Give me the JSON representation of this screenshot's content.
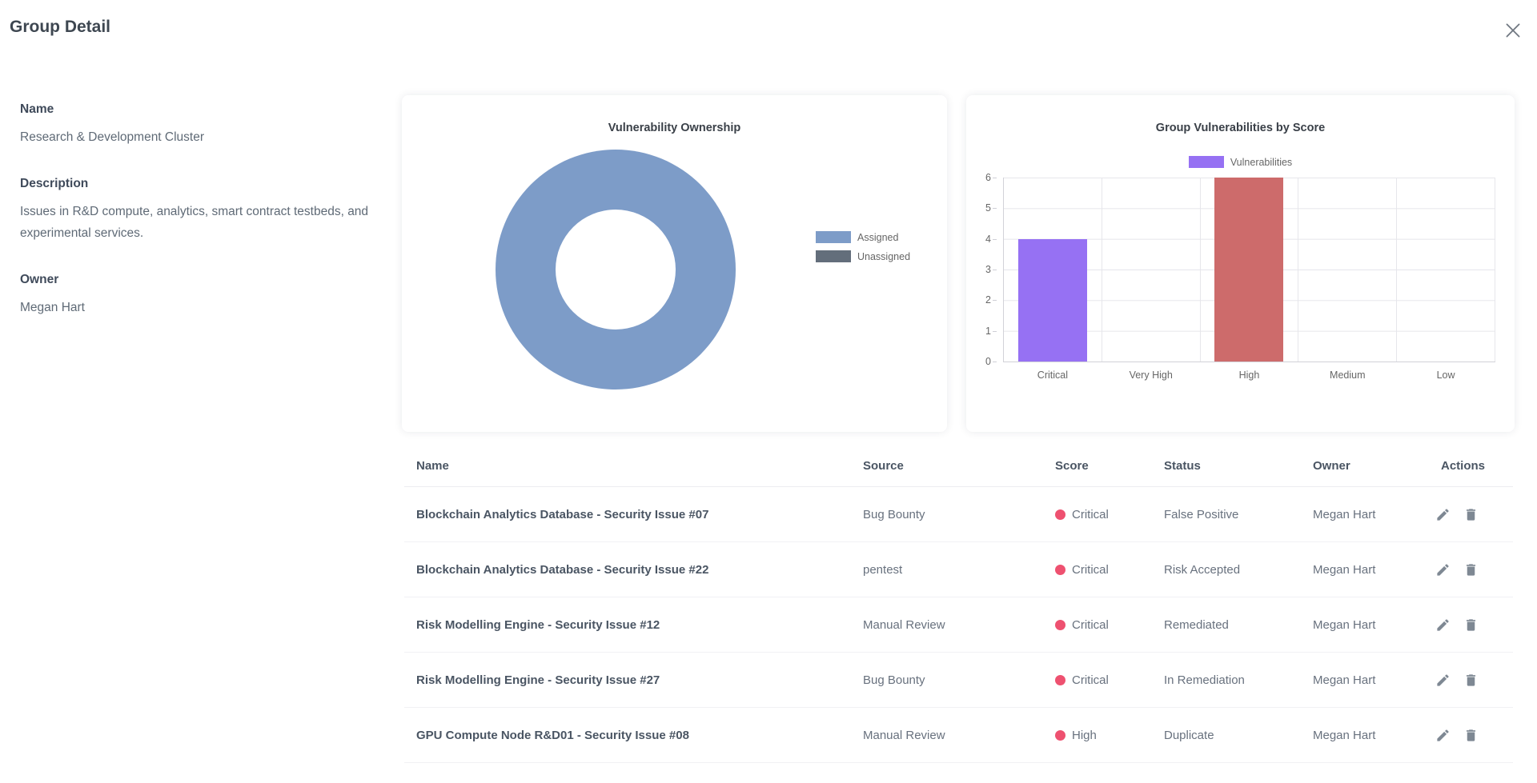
{
  "header": {
    "title": "Group Detail"
  },
  "details": {
    "name_label": "Name",
    "name_value": "Research & Development Cluster",
    "description_label": "Description",
    "description_value": "Issues in R&D compute, analytics, smart contract testbeds, and experimental services.",
    "owner_label": "Owner",
    "owner_value": "Megan Hart"
  },
  "chart_data": [
    {
      "type": "pie",
      "title": "Vulnerability Ownership",
      "labels": [
        "Assigned",
        "Unassigned"
      ],
      "values_pct": [
        100,
        0
      ],
      "colors": [
        "#7d9cc8",
        "#636e7b"
      ],
      "legend_position": "right"
    },
    {
      "type": "bar",
      "title": "Group Vulnerabilities by Score",
      "categories": [
        "Critical",
        "Very High",
        "High",
        "Medium",
        "Low"
      ],
      "series": [
        {
          "name": "Vulnerabilities",
          "values": [
            4,
            0,
            6,
            0,
            0
          ]
        }
      ],
      "bar_colors": [
        "#9671f3",
        "#9671f3",
        "#cd6b6b",
        "#9671f3",
        "#9671f3"
      ],
      "legend_color": "#9671f3",
      "ylim": [
        0,
        6
      ],
      "yticks": [
        0,
        1,
        2,
        3,
        4,
        5,
        6
      ],
      "grid": true,
      "legend_position": "top"
    }
  ],
  "table": {
    "columns": [
      "Name",
      "Source",
      "Score",
      "Status",
      "Owner",
      "Actions"
    ],
    "score_dot_color": "#ee5170",
    "rows": [
      {
        "name": "Blockchain Analytics Database - Security Issue #07",
        "source": "Bug Bounty",
        "score": "Critical",
        "status": "False Positive",
        "owner": "Megan Hart"
      },
      {
        "name": "Blockchain Analytics Database - Security Issue #22",
        "source": "pentest",
        "score": "Critical",
        "status": "Risk Accepted",
        "owner": "Megan Hart"
      },
      {
        "name": "Risk Modelling Engine - Security Issue #12",
        "source": "Manual Review",
        "score": "Critical",
        "status": "Remediated",
        "owner": "Megan Hart"
      },
      {
        "name": "Risk Modelling Engine - Security Issue #27",
        "source": "Bug Bounty",
        "score": "Critical",
        "status": "In Remediation",
        "owner": "Megan Hart"
      },
      {
        "name": "GPU Compute Node R&D01 - Security Issue #08",
        "source": "Manual Review",
        "score": "High",
        "status": "Duplicate",
        "owner": "Megan Hart"
      }
    ]
  },
  "icons": {
    "close": "x-cross",
    "edit": "pencil",
    "delete": "trash-can"
  }
}
